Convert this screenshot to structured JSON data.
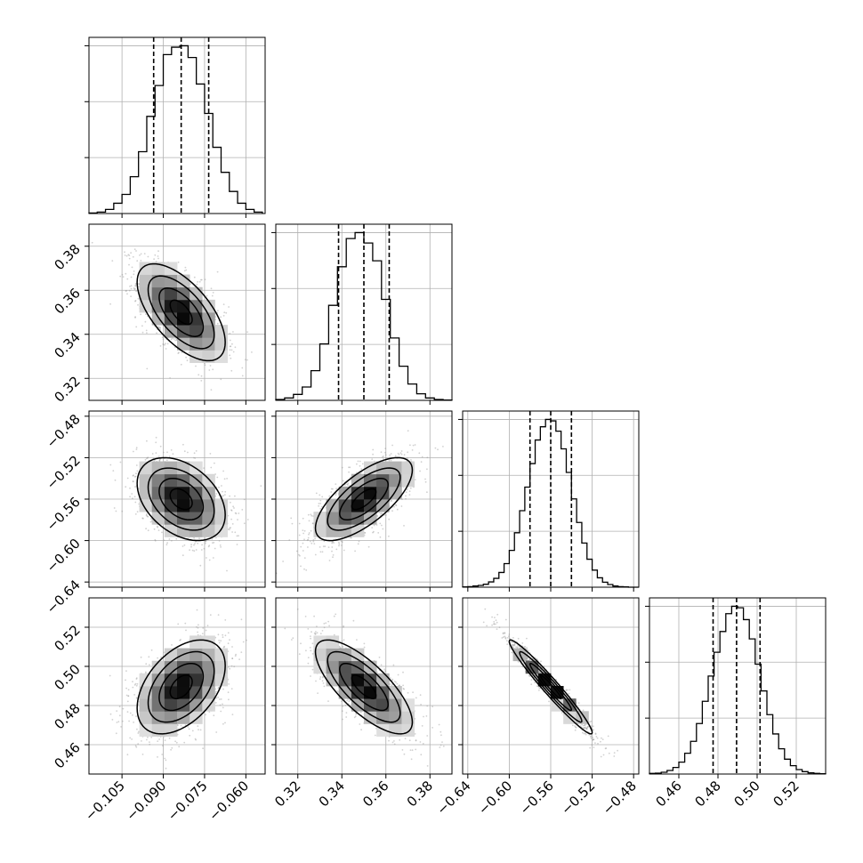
{
  "chart_data": {
    "type": "corner",
    "parameters": 4,
    "grid": true,
    "colors": {
      "line": "#000000",
      "grid": "#b0b0b0",
      "scatter": "#9a9a9a",
      "background": "#ffffff"
    },
    "axes": [
      {
        "range": [
          -0.117,
          -0.053
        ],
        "ticks": [
          -0.105,
          -0.09,
          -0.075,
          -0.06
        ],
        "tick_labels": [
          "−0.105",
          "−0.090",
          "−0.075",
          "−0.060"
        ]
      },
      {
        "range": [
          0.31,
          0.39
        ],
        "ticks": [
          0.32,
          0.34,
          0.36,
          0.38
        ],
        "tick_labels": [
          "0.32",
          "0.34",
          "0.36",
          "0.38"
        ]
      },
      {
        "range": [
          -0.645,
          -0.475
        ],
        "ticks": [
          -0.64,
          -0.6,
          -0.56,
          -0.52,
          -0.48
        ],
        "tick_labels": [
          "−0.64",
          "−0.60",
          "−0.56",
          "−0.52",
          "−0.48"
        ]
      },
      {
        "range": [
          0.445,
          0.535
        ],
        "ticks": [
          0.46,
          0.48,
          0.5,
          0.52
        ],
        "tick_labels": [
          "0.46",
          "0.48",
          "0.50",
          "0.52"
        ]
      }
    ],
    "histograms": [
      {
        "parameter": 0,
        "quantiles": [
          -0.0935,
          -0.0835,
          -0.0735
        ],
        "bins": [
          -0.117,
          -0.114,
          -0.111,
          -0.108,
          -0.105,
          -0.102,
          -0.099,
          -0.096,
          -0.093,
          -0.09,
          -0.087,
          -0.084,
          -0.081,
          -0.078,
          -0.075,
          -0.072,
          -0.069,
          -0.066,
          -0.063,
          -0.06,
          -0.057,
          -0.054
        ],
        "counts": [
          2,
          5,
          14,
          35,
          65,
          125,
          210,
          330,
          435,
          540,
          565,
          570,
          530,
          440,
          340,
          225,
          140,
          75,
          35,
          14,
          5
        ]
      },
      {
        "parameter": 1,
        "quantiles": [
          0.3385,
          0.35,
          0.3615
        ],
        "bins": [
          0.31,
          0.314,
          0.318,
          0.322,
          0.326,
          0.33,
          0.334,
          0.338,
          0.342,
          0.346,
          0.35,
          0.354,
          0.358,
          0.362,
          0.366,
          0.37,
          0.374,
          0.378,
          0.382,
          0.386,
          0.39
        ],
        "counts": [
          3,
          8,
          20,
          45,
          100,
          190,
          320,
          450,
          545,
          565,
          530,
          470,
          340,
          210,
          115,
          55,
          22,
          8,
          3,
          1
        ]
      },
      {
        "parameter": 2,
        "quantiles": [
          -0.58,
          -0.56,
          -0.54
        ],
        "bins": [
          -0.645,
          -0.64,
          -0.635,
          -0.63,
          -0.625,
          -0.62,
          -0.615,
          -0.61,
          -0.605,
          -0.6,
          -0.595,
          -0.59,
          -0.585,
          -0.58,
          -0.575,
          -0.57,
          -0.565,
          -0.56,
          -0.555,
          -0.55,
          -0.545,
          -0.54,
          -0.535,
          -0.53,
          -0.525,
          -0.52,
          -0.515,
          -0.51,
          -0.505,
          -0.5,
          -0.495,
          -0.49,
          -0.485,
          -0.48,
          -0.475
        ],
        "counts": [
          1,
          2,
          4,
          6,
          10,
          18,
          30,
          50,
          80,
          125,
          185,
          260,
          340,
          420,
          500,
          545,
          570,
          565,
          530,
          470,
          390,
          300,
          220,
          150,
          95,
          58,
          32,
          17,
          9,
          4,
          2,
          1,
          0,
          0
        ]
      },
      {
        "parameter": 3,
        "quantiles": [
          0.4775,
          0.4895,
          0.5015
        ],
        "bins": [
          0.445,
          0.448,
          0.451,
          0.454,
          0.457,
          0.46,
          0.463,
          0.466,
          0.469,
          0.472,
          0.475,
          0.478,
          0.481,
          0.484,
          0.487,
          0.49,
          0.493,
          0.496,
          0.499,
          0.502,
          0.505,
          0.508,
          0.511,
          0.514,
          0.517,
          0.52,
          0.523,
          0.526,
          0.529,
          0.532,
          0.535
        ],
        "counts": [
          2,
          3,
          6,
          12,
          22,
          40,
          70,
          110,
          170,
          245,
          330,
          410,
          480,
          540,
          565,
          560,
          520,
          455,
          370,
          280,
          200,
          135,
          85,
          50,
          28,
          15,
          8,
          4,
          2,
          1
        ]
      }
    ],
    "joint": [
      {
        "x": 0,
        "y": 1,
        "center": [
          -0.0835,
          0.35
        ],
        "sd": [
          0.008,
          0.011
        ],
        "rho": -0.62
      },
      {
        "x": 0,
        "y": 2,
        "center": [
          -0.0835,
          -0.56
        ],
        "sd": [
          0.008,
          0.02
        ],
        "rho": -0.38
      },
      {
        "x": 1,
        "y": 2,
        "center": [
          0.35,
          -0.56
        ],
        "sd": [
          0.011,
          0.02
        ],
        "rho": 0.7
      },
      {
        "x": 0,
        "y": 3,
        "center": [
          -0.0835,
          0.4895
        ],
        "sd": [
          0.008,
          0.012
        ],
        "rho": 0.45
      },
      {
        "x": 1,
        "y": 3,
        "center": [
          0.35,
          0.4895
        ],
        "sd": [
          0.011,
          0.012
        ],
        "rho": -0.75
      },
      {
        "x": 2,
        "y": 3,
        "center": [
          -0.56,
          0.4895
        ],
        "sd": [
          0.02,
          0.012
        ],
        "rho": -0.97
      }
    ],
    "contour_levels_sigma": [
      0.5,
      1.0,
      1.5,
      2.0
    ]
  }
}
